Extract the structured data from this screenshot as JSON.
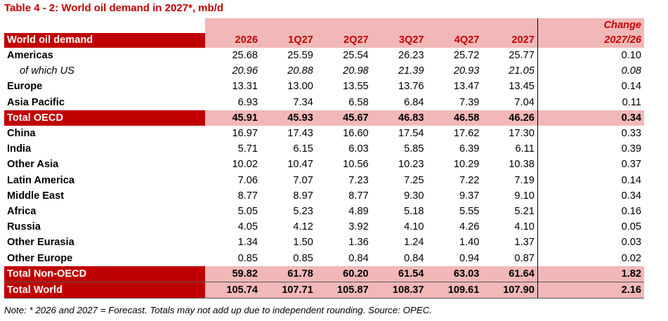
{
  "title": "Table 4 - 2: World oil demand in 2027*, mb/d",
  "header": {
    "label": "World oil demand",
    "cols": [
      "2026",
      "1Q27",
      "2Q27",
      "3Q27",
      "4Q27",
      "2027"
    ],
    "change_line1": "Change",
    "change_line2": "2027/26"
  },
  "rows": [
    {
      "label": "Americas",
      "values": [
        "25.68",
        "25.59",
        "25.54",
        "26.23",
        "25.72",
        "25.77"
      ],
      "change": "0.10"
    },
    {
      "label": "of which US",
      "values": [
        "20.96",
        "20.88",
        "20.98",
        "21.39",
        "20.93",
        "21.05"
      ],
      "change": "0.08"
    },
    {
      "label": "Europe",
      "values": [
        "13.31",
        "13.00",
        "13.55",
        "13.76",
        "13.47",
        "13.45"
      ],
      "change": "0.14"
    },
    {
      "label": "Asia Pacific",
      "values": [
        "6.93",
        "7.34",
        "6.58",
        "6.84",
        "7.39",
        "7.04"
      ],
      "change": "0.11"
    },
    {
      "label": "Total OECD",
      "values": [
        "45.91",
        "45.93",
        "45.67",
        "46.83",
        "46.58",
        "46.26"
      ],
      "change": "0.34"
    },
    {
      "label": "China",
      "values": [
        "16.97",
        "17.43",
        "16.60",
        "17.54",
        "17.62",
        "17.30"
      ],
      "change": "0.33"
    },
    {
      "label": "India",
      "values": [
        "5.71",
        "6.15",
        "6.03",
        "5.85",
        "6.39",
        "6.11"
      ],
      "change": "0.39"
    },
    {
      "label": "Other Asia",
      "values": [
        "10.02",
        "10.47",
        "10.56",
        "10.23",
        "10.29",
        "10.38"
      ],
      "change": "0.37"
    },
    {
      "label": "Latin America",
      "values": [
        "7.06",
        "7.07",
        "7.23",
        "7.25",
        "7.22",
        "7.19"
      ],
      "change": "0.14"
    },
    {
      "label": "Middle East",
      "values": [
        "8.77",
        "8.97",
        "8.77",
        "9.30",
        "9.37",
        "9.10"
      ],
      "change": "0.34"
    },
    {
      "label": "Africa",
      "values": [
        "5.05",
        "5.23",
        "4.89",
        "5.18",
        "5.55",
        "5.21"
      ],
      "change": "0.16"
    },
    {
      "label": "Russia",
      "values": [
        "4.05",
        "4.12",
        "3.92",
        "4.10",
        "4.26",
        "4.10"
      ],
      "change": "0.05"
    },
    {
      "label": "Other Eurasia",
      "values": [
        "1.34",
        "1.50",
        "1.36",
        "1.24",
        "1.40",
        "1.37"
      ],
      "change": "0.03"
    },
    {
      "label": "Other Europe",
      "values": [
        "0.85",
        "0.85",
        "0.84",
        "0.84",
        "0.94",
        "0.87"
      ],
      "change": "0.02"
    },
    {
      "label": "Total Non-OECD",
      "values": [
        "59.82",
        "61.78",
        "60.20",
        "61.54",
        "63.03",
        "61.64"
      ],
      "change": "1.82"
    },
    {
      "label": "Total World",
      "values": [
        "105.74",
        "107.71",
        "105.87",
        "108.37",
        "109.61",
        "107.90"
      ],
      "change": "2.16"
    }
  ],
  "note": "Note: * 2026 and 2027 = Forecast. Totals may not add up due to independent rounding. Source: OPEC.",
  "colors": {
    "accent": "#c00000",
    "header_fill": "#f2b8b8"
  }
}
